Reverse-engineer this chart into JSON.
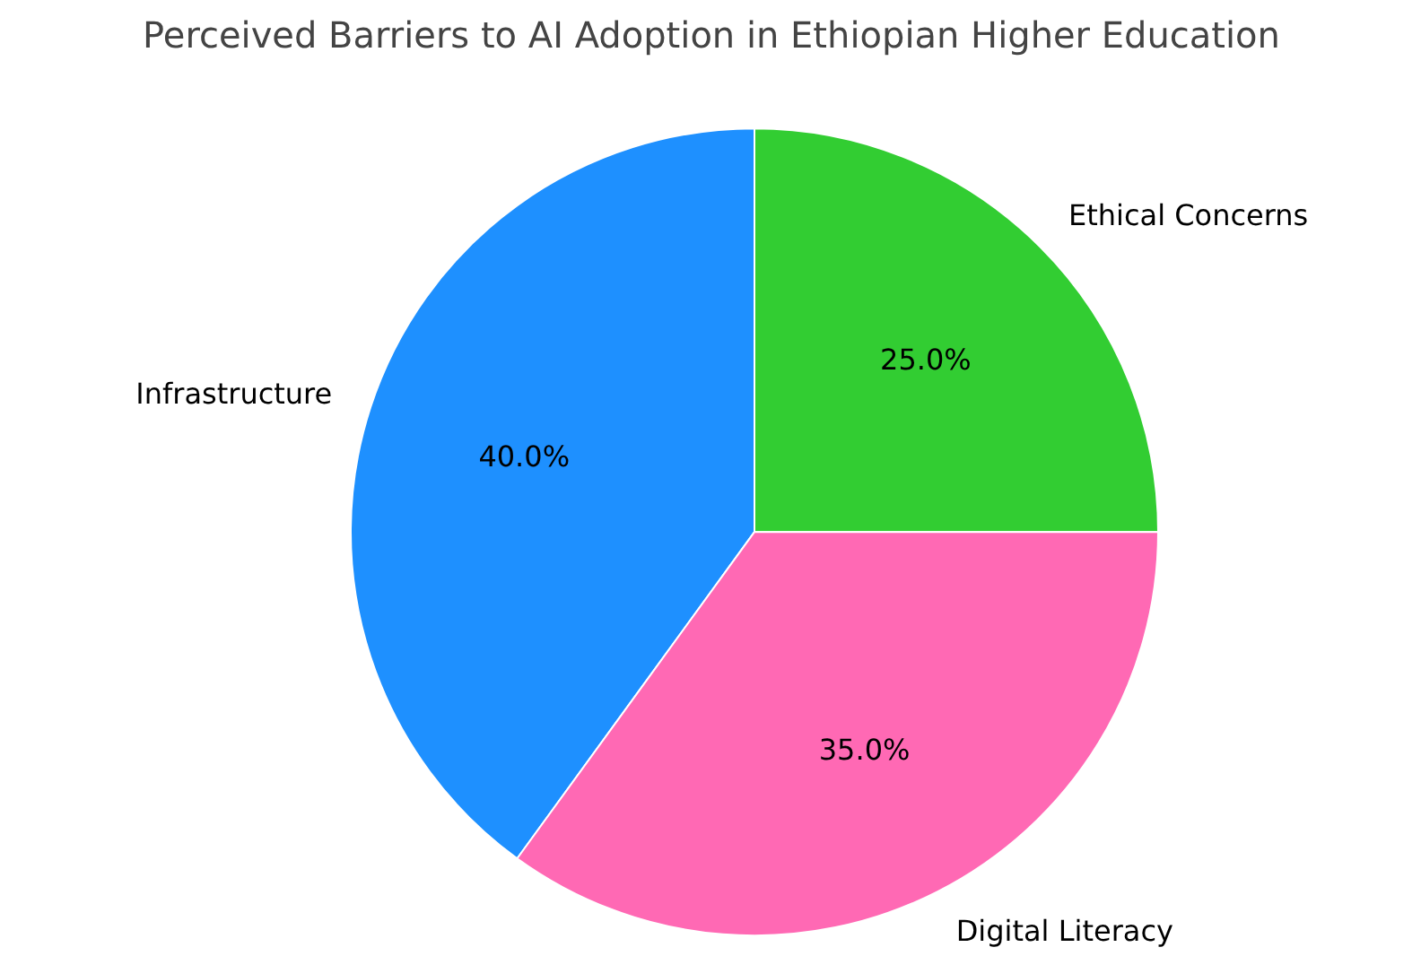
{
  "chart_data": {
    "type": "pie",
    "title": "Perceived Barriers to AI Adoption in Ethiopian Higher Education",
    "categories": [
      "Ethical Concerns",
      "Infrastructure",
      "Digital Literacy"
    ],
    "values": [
      25.0,
      40.0,
      35.0
    ],
    "colors": [
      "#32cd32",
      "#1e90ff",
      "#ff69b4"
    ],
    "value_labels": [
      "25.0%",
      "40.0%",
      "35.0%"
    ]
  }
}
